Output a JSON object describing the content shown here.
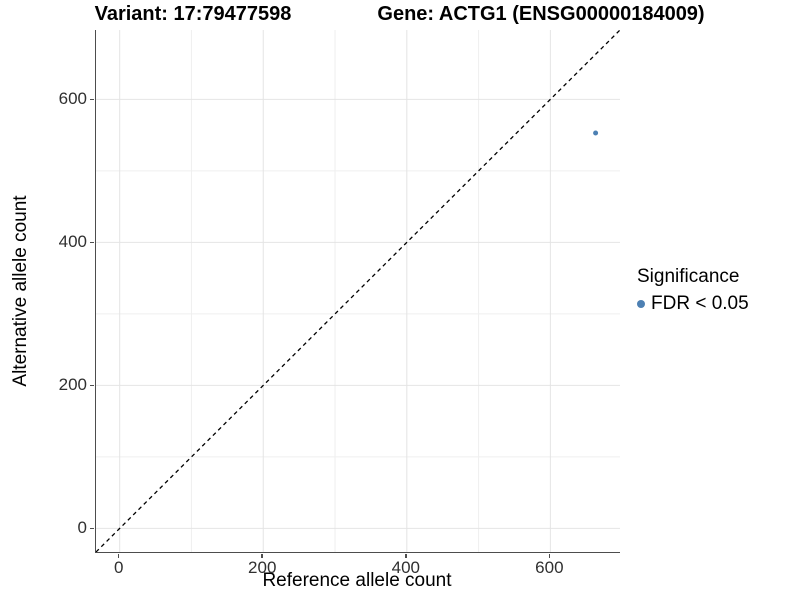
{
  "chart_data": {
    "type": "scatter",
    "title_left": "Variant: 17:79477598",
    "title_right": "Gene: ACTG1 (ENSG00000184009)",
    "xlabel": "Reference allele count",
    "ylabel": "Alternative allele count",
    "xlim": [
      -33,
      697
    ],
    "ylim": [
      -33,
      697
    ],
    "x_ticks": [
      0,
      200,
      400,
      600
    ],
    "y_ticks": [
      0,
      200,
      400,
      600
    ],
    "x_minor_ticks": [
      100,
      300,
      500,
      700
    ],
    "y_minor_ticks": [
      100,
      300,
      500,
      700
    ],
    "grid": true,
    "identity_line": {
      "style": "dashed",
      "x1": -33,
      "y1": -33,
      "x2": 697,
      "y2": 697,
      "color": "#000000"
    },
    "series": [
      {
        "name": "FDR < 0.05",
        "color": "#4d80b3",
        "point_radius": 2.5,
        "points": [
          {
            "x": 663,
            "y": 553
          }
        ]
      }
    ],
    "legend": {
      "position": "right",
      "title": "Significance",
      "items": [
        {
          "label": "FDR < 0.05",
          "color": "#4d80b3"
        }
      ]
    }
  },
  "colors": {
    "background": "#ffffff",
    "axis_line": "#4d4d4d",
    "tick_text": "#303030",
    "grid_major": "#e4e4e4",
    "grid_minor": "#efefef",
    "identity_line": "#000000"
  }
}
